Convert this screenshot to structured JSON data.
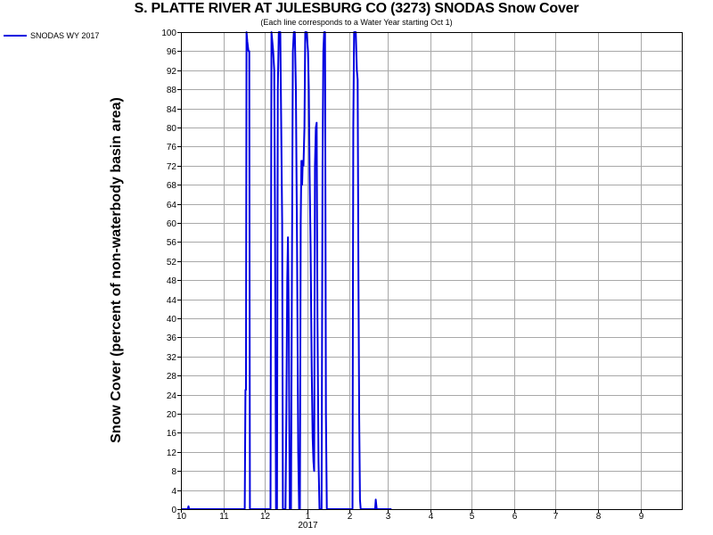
{
  "chart_data": {
    "type": "line",
    "title": "S. PLATTE RIVER AT JULESBURG CO (3273) SNODAS Snow Cover",
    "subtitle": "(Each line corresponds to a Water Year starting Oct 1)",
    "ylabel": "Snow Cover (percent of non-waterbody basin area)",
    "xlabel": "",
    "ylim": [
      0,
      100
    ],
    "y_ticks": [
      0,
      4,
      8,
      12,
      16,
      20,
      24,
      28,
      32,
      36,
      40,
      44,
      48,
      52,
      56,
      60,
      64,
      68,
      72,
      76,
      80,
      84,
      88,
      92,
      96,
      100
    ],
    "x_unit": "days since Oct 1 (water year day)",
    "xlim": [
      0,
      365
    ],
    "x_ticks": [
      {
        "day": 0,
        "label": "10"
      },
      {
        "day": 31,
        "label": "11"
      },
      {
        "day": 61,
        "label": "12"
      },
      {
        "day": 92,
        "label": "1",
        "sublabel": "2017"
      },
      {
        "day": 123,
        "label": "2"
      },
      {
        "day": 151,
        "label": "3"
      },
      {
        "day": 182,
        "label": "4"
      },
      {
        "day": 212,
        "label": "5"
      },
      {
        "day": 243,
        "label": "6"
      },
      {
        "day": 273,
        "label": "7"
      },
      {
        "day": 304,
        "label": "8"
      },
      {
        "day": 335,
        "label": "9"
      }
    ],
    "grid": true,
    "legend_position": "top-left",
    "series": [
      {
        "name": "SNODAS WY 2017",
        "color": "#0000e0",
        "points": [
          [
            0,
            0
          ],
          [
            5,
            0
          ],
          [
            5.5,
            0.6
          ],
          [
            6,
            0
          ],
          [
            10,
            0
          ],
          [
            20,
            0
          ],
          [
            30,
            0
          ],
          [
            40,
            0
          ],
          [
            45,
            0
          ],
          [
            46.5,
            0
          ],
          [
            47.0,
            25
          ],
          [
            47.4,
            25
          ],
          [
            47.8,
            100
          ],
          [
            48.4,
            98
          ],
          [
            49.2,
            96
          ],
          [
            49.8,
            96
          ],
          [
            50.3,
            0
          ],
          [
            55,
            0
          ],
          [
            63,
            0
          ],
          [
            65.3,
            0
          ],
          [
            66.0,
            100
          ],
          [
            67.2,
            96
          ],
          [
            68.0,
            92
          ],
          [
            68.6,
            60
          ],
          [
            69.3,
            0
          ],
          [
            70,
            0
          ],
          [
            70.6,
            88
          ],
          [
            71.3,
            100
          ],
          [
            72.4,
            100
          ],
          [
            73.8,
            60
          ],
          [
            74.3,
            0
          ],
          [
            75.5,
            0
          ],
          [
            76.2,
            0
          ],
          [
            76.8,
            20
          ],
          [
            77.5,
            48
          ],
          [
            78.0,
            57
          ],
          [
            78.6,
            40
          ],
          [
            79.3,
            0
          ],
          [
            80.2,
            0
          ],
          [
            80.9,
            52
          ],
          [
            81.6,
            96
          ],
          [
            82.3,
            100
          ],
          [
            83.0,
            100
          ],
          [
            83.8,
            88
          ],
          [
            84.6,
            55
          ],
          [
            85.5,
            12
          ],
          [
            86.1,
            0
          ],
          [
            86.7,
            0
          ],
          [
            87.3,
            60
          ],
          [
            87.8,
            73
          ],
          [
            88.3,
            68
          ],
          [
            88.8,
            73
          ],
          [
            89.3,
            72
          ],
          [
            90.0,
            80
          ],
          [
            90.6,
            100
          ],
          [
            91.6,
            100
          ],
          [
            92.6,
            96
          ],
          [
            93.2,
            88
          ],
          [
            93.8,
            70
          ],
          [
            94.5,
            55
          ],
          [
            95.3,
            30
          ],
          [
            96.0,
            15
          ],
          [
            96.6,
            10
          ],
          [
            97.1,
            8
          ],
          [
            97.7,
            72
          ],
          [
            98.3,
            80
          ],
          [
            98.9,
            81
          ],
          [
            99.5,
            40
          ],
          [
            100.3,
            10
          ],
          [
            101.0,
            0
          ],
          [
            102.5,
            0
          ],
          [
            103.2,
            72
          ],
          [
            103.8,
            96
          ],
          [
            104.4,
            100
          ],
          [
            105.0,
            100
          ],
          [
            105.7,
            20
          ],
          [
            106.3,
            0
          ],
          [
            110,
            0
          ],
          [
            115,
            0
          ],
          [
            125.0,
            0
          ],
          [
            125.6,
            80
          ],
          [
            126.2,
            100
          ],
          [
            127.4,
            100
          ],
          [
            128.2,
            92
          ],
          [
            128.8,
            90
          ],
          [
            129.4,
            48
          ],
          [
            129.9,
            20
          ],
          [
            130.5,
            2
          ],
          [
            131.0,
            0
          ],
          [
            135,
            0
          ],
          [
            140,
            0
          ],
          [
            141.5,
            0
          ],
          [
            142.0,
            2
          ],
          [
            142.7,
            0
          ],
          [
            150,
            0
          ],
          [
            153.5,
            0
          ]
        ]
      }
    ]
  }
}
